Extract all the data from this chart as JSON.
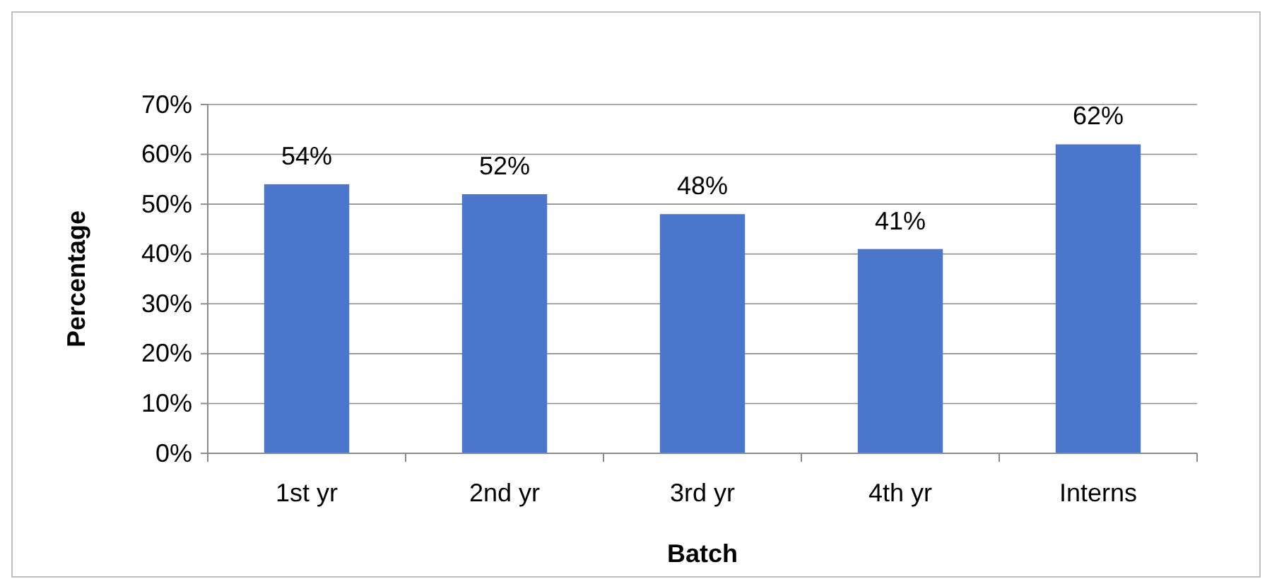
{
  "chart_data": {
    "type": "bar",
    "xlabel": "Batch",
    "ylabel": "Percentage",
    "categories": [
      "1st yr",
      "2nd yr",
      "3rd yr",
      "4th yr",
      "Interns"
    ],
    "values": [
      54,
      52,
      48,
      41,
      62
    ],
    "value_labels": [
      "54%",
      "52%",
      "48%",
      "41%",
      "62%"
    ],
    "color": "#4a76cc",
    "ylim": [
      0,
      70
    ],
    "yticks": [
      {
        "value": 0,
        "label": "0%"
      },
      {
        "value": 10,
        "label": "10%"
      },
      {
        "value": 20,
        "label": "20%"
      },
      {
        "value": 30,
        "label": "30%"
      },
      {
        "value": 40,
        "label": "40%"
      },
      {
        "value": 50,
        "label": "50%"
      },
      {
        "value": 60,
        "label": "60%"
      },
      {
        "value": 70,
        "label": "70%"
      }
    ],
    "grid": "y"
  }
}
